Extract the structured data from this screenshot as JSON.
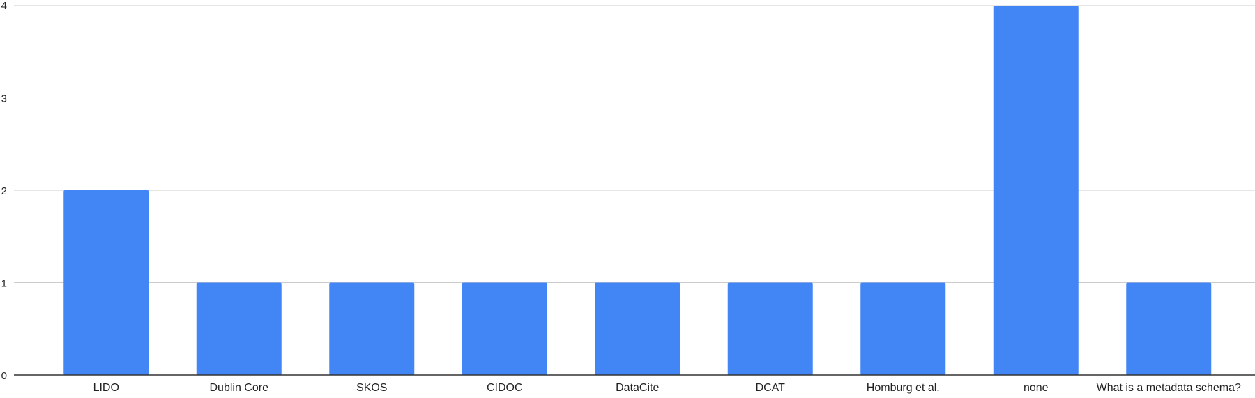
{
  "chart_data": {
    "type": "bar",
    "title": "",
    "xlabel": "",
    "ylabel": "",
    "categories": [
      "LIDO",
      "Dublin Core",
      "SKOS",
      "CIDOC",
      "DataCite",
      "DCAT",
      "Homburg et al.",
      "none",
      "What is a metadata schema?"
    ],
    "values": [
      2,
      1,
      1,
      1,
      1,
      1,
      1,
      4,
      1
    ],
    "ylim": [
      0,
      4
    ],
    "yticks": [
      "0",
      "1",
      "2",
      "3",
      "4"
    ],
    "grid": true,
    "legend": "none",
    "bar_color": "#4285F4",
    "grid_color": "#CCCCCC",
    "axis_color": "#333333"
  }
}
